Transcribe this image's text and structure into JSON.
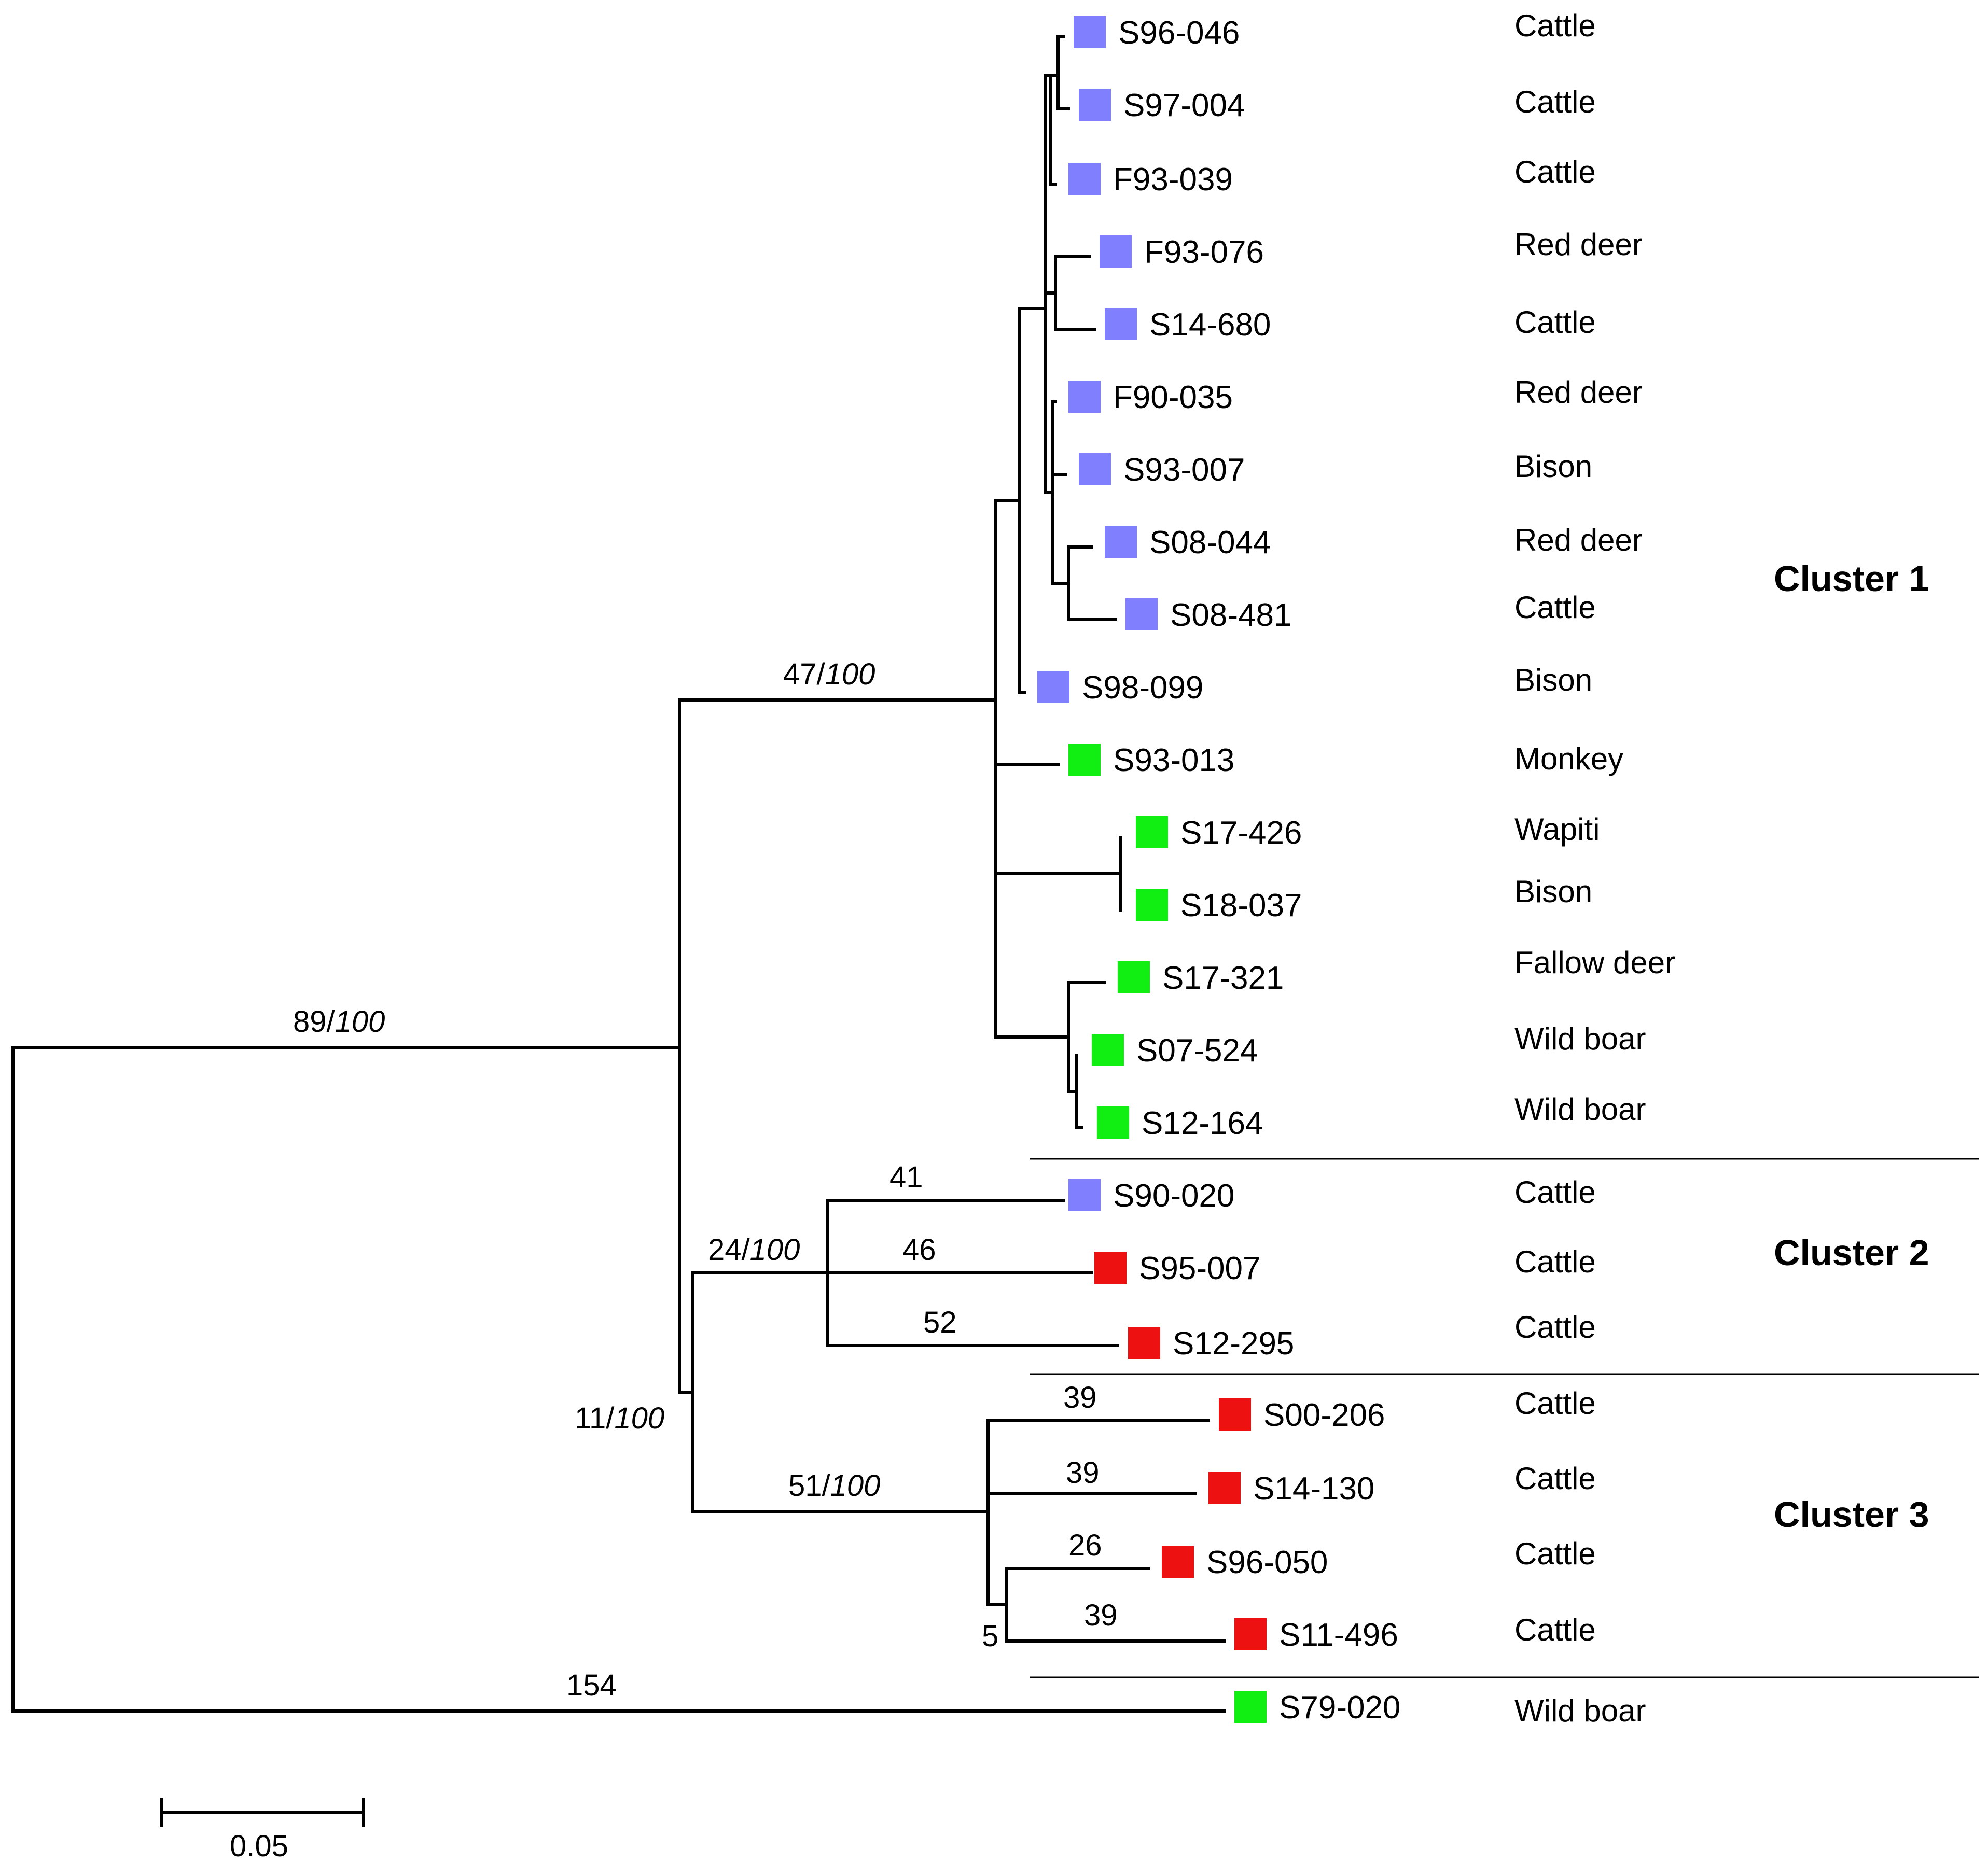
{
  "colors": {
    "blue": "#8080ff",
    "green": "#11ee11",
    "red": "#ee1111",
    "line": "#000000"
  },
  "tips": [
    {
      "id": "S96-046",
      "host": "Cattle",
      "color": "blue"
    },
    {
      "id": "S97-004",
      "host": "Cattle",
      "color": "blue"
    },
    {
      "id": "F93-039",
      "host": "Cattle",
      "color": "blue"
    },
    {
      "id": "F93-076",
      "host": "Red deer",
      "color": "blue"
    },
    {
      "id": "S14-680",
      "host": "Cattle",
      "color": "blue"
    },
    {
      "id": "F90-035",
      "host": "Red deer",
      "color": "blue"
    },
    {
      "id": "S93-007",
      "host": "Bison",
      "color": "blue"
    },
    {
      "id": "S08-044",
      "host": "Red deer",
      "color": "blue"
    },
    {
      "id": "S08-481",
      "host": "Cattle",
      "color": "blue"
    },
    {
      "id": "S98-099",
      "host": "Bison",
      "color": "blue"
    },
    {
      "id": "S93-013",
      "host": "Monkey",
      "color": "green"
    },
    {
      "id": "S17-426",
      "host": "Wapiti",
      "color": "green"
    },
    {
      "id": "S18-037",
      "host": "Bison",
      "color": "green"
    },
    {
      "id": "S17-321",
      "host": "Fallow deer",
      "color": "green"
    },
    {
      "id": "S07-524",
      "host": "Wild boar",
      "color": "green"
    },
    {
      "id": "S12-164",
      "host": "Wild boar",
      "color": "green"
    },
    {
      "id": "S90-020",
      "host": "Cattle",
      "color": "blue"
    },
    {
      "id": "S95-007",
      "host": "Cattle",
      "color": "red"
    },
    {
      "id": "S12-295",
      "host": "Cattle",
      "color": "red"
    },
    {
      "id": "S00-206",
      "host": "Cattle",
      "color": "red"
    },
    {
      "id": "S14-130",
      "host": "Cattle",
      "color": "red"
    },
    {
      "id": "S96-050",
      "host": "Cattle",
      "color": "red"
    },
    {
      "id": "S11-496",
      "host": "Cattle",
      "color": "red"
    },
    {
      "id": "S79-020",
      "host": "Wild boar",
      "color": "green"
    }
  ],
  "clusters": [
    "Cluster 1",
    "Cluster 2",
    "Cluster 3"
  ],
  "support": {
    "n89": {
      "a": "89/",
      "b": "100"
    },
    "n47": {
      "a": "47/",
      "b": "100"
    },
    "n24": {
      "a": "24/",
      "b": "100"
    },
    "n11": {
      "a": "11/",
      "b": "100"
    },
    "n51": {
      "a": "51/",
      "b": "100"
    },
    "l41": "41",
    "l46": "46",
    "l52": "52",
    "l39a": "39",
    "l39b": "39",
    "l26": "26",
    "l39c": "39",
    "n5": "5",
    "l154": "154"
  },
  "scale_label": "0.05"
}
